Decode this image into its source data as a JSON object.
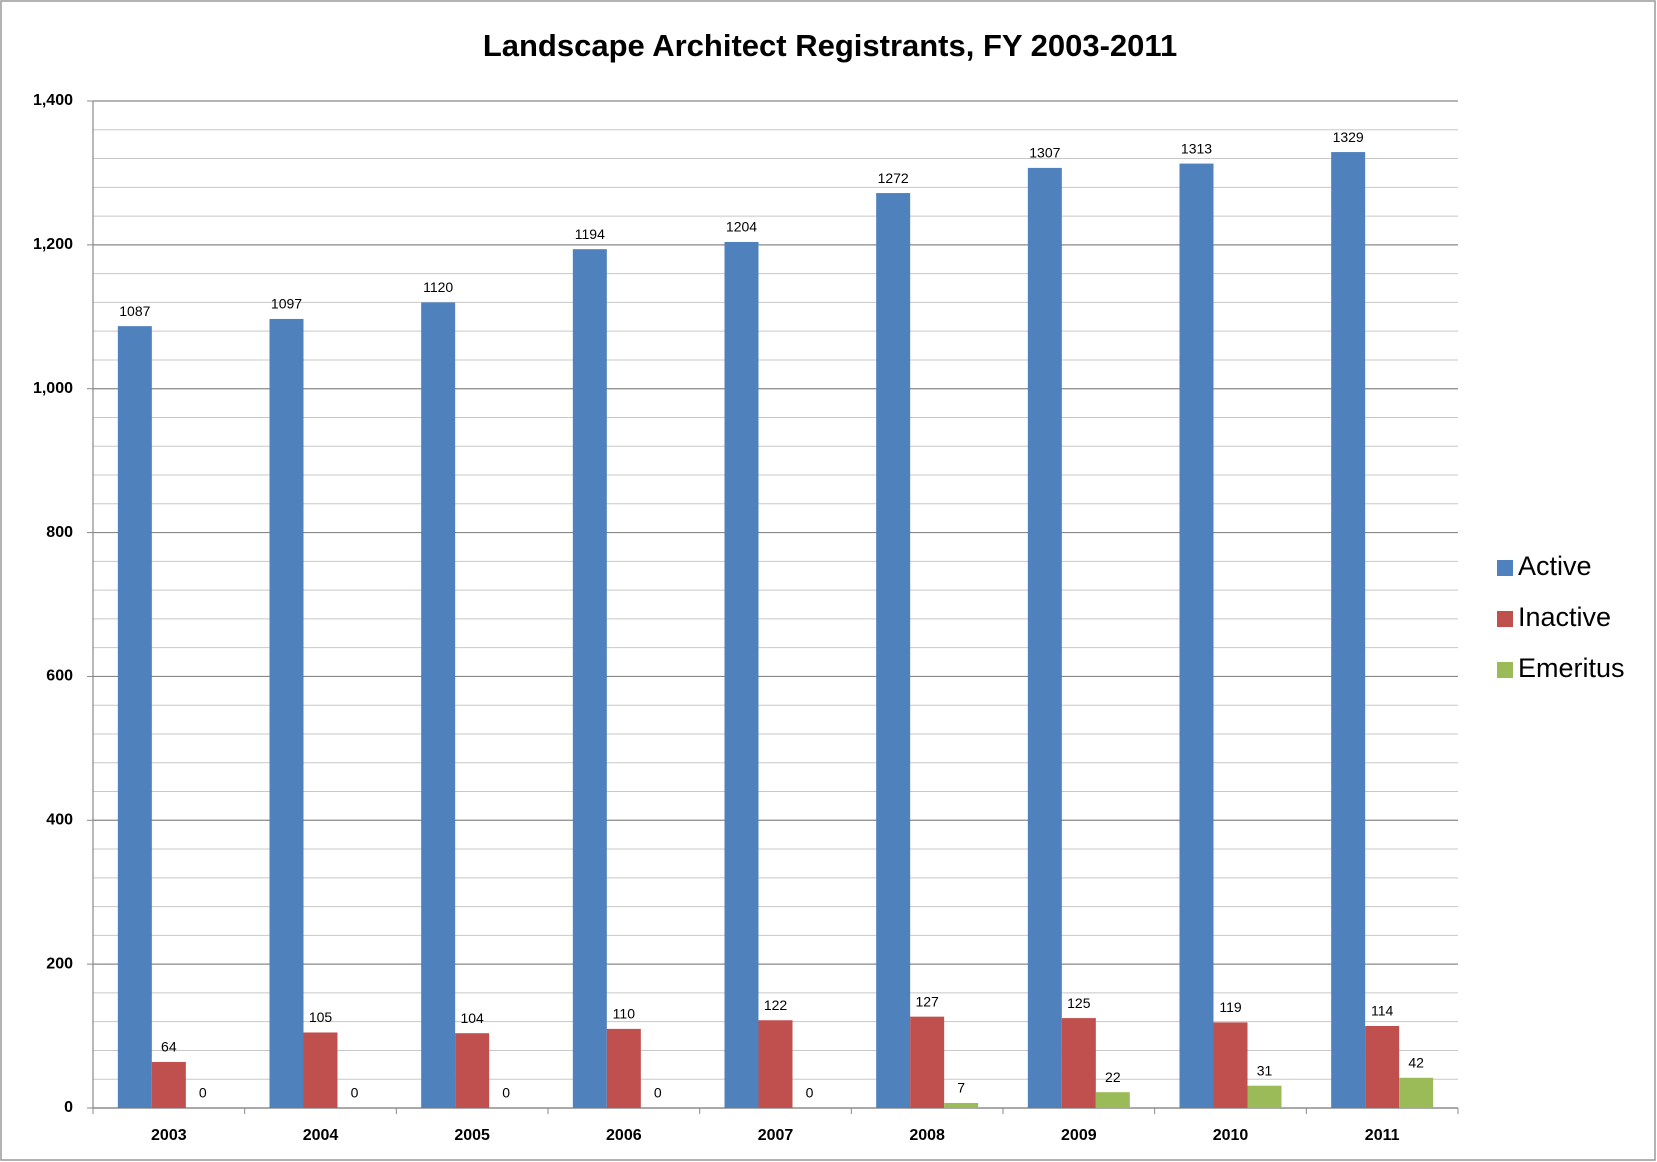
{
  "chart_data": {
    "type": "bar",
    "title": "Landscape Architect Registrants, FY 2003-2011",
    "categories": [
      "2003",
      "2004",
      "2005",
      "2006",
      "2007",
      "2008",
      "2009",
      "2010",
      "2011"
    ],
    "series": [
      {
        "name": "Active",
        "color": "#4f81bd",
        "values": [
          1087,
          1097,
          1120,
          1194,
          1204,
          1272,
          1307,
          1313,
          1329
        ]
      },
      {
        "name": "Inactive",
        "color": "#c0504d",
        "values": [
          64,
          105,
          104,
          110,
          122,
          127,
          125,
          119,
          114
        ]
      },
      {
        "name": "Emeritus",
        "color": "#9bbb59",
        "values": [
          0,
          0,
          0,
          0,
          0,
          7,
          22,
          31,
          42
        ]
      }
    ],
    "ylim": [
      0,
      1400
    ],
    "yticks": [
      0,
      200,
      400,
      600,
      800,
      {
        "value": 1000,
        "label": "1,000"
      },
      {
        "value": 1200,
        "label": "1,200"
      },
      {
        "value": 1400,
        "label": "1,400"
      }
    ],
    "minor_yticks": [
      40,
      80,
      120,
      160,
      240,
      280,
      320,
      360,
      440,
      480,
      520,
      560,
      640,
      680,
      720,
      760,
      840,
      880,
      920,
      960,
      1040,
      1080,
      1120,
      1160,
      1240,
      1280,
      1320,
      1360
    ],
    "grid": true,
    "legend": "right"
  }
}
